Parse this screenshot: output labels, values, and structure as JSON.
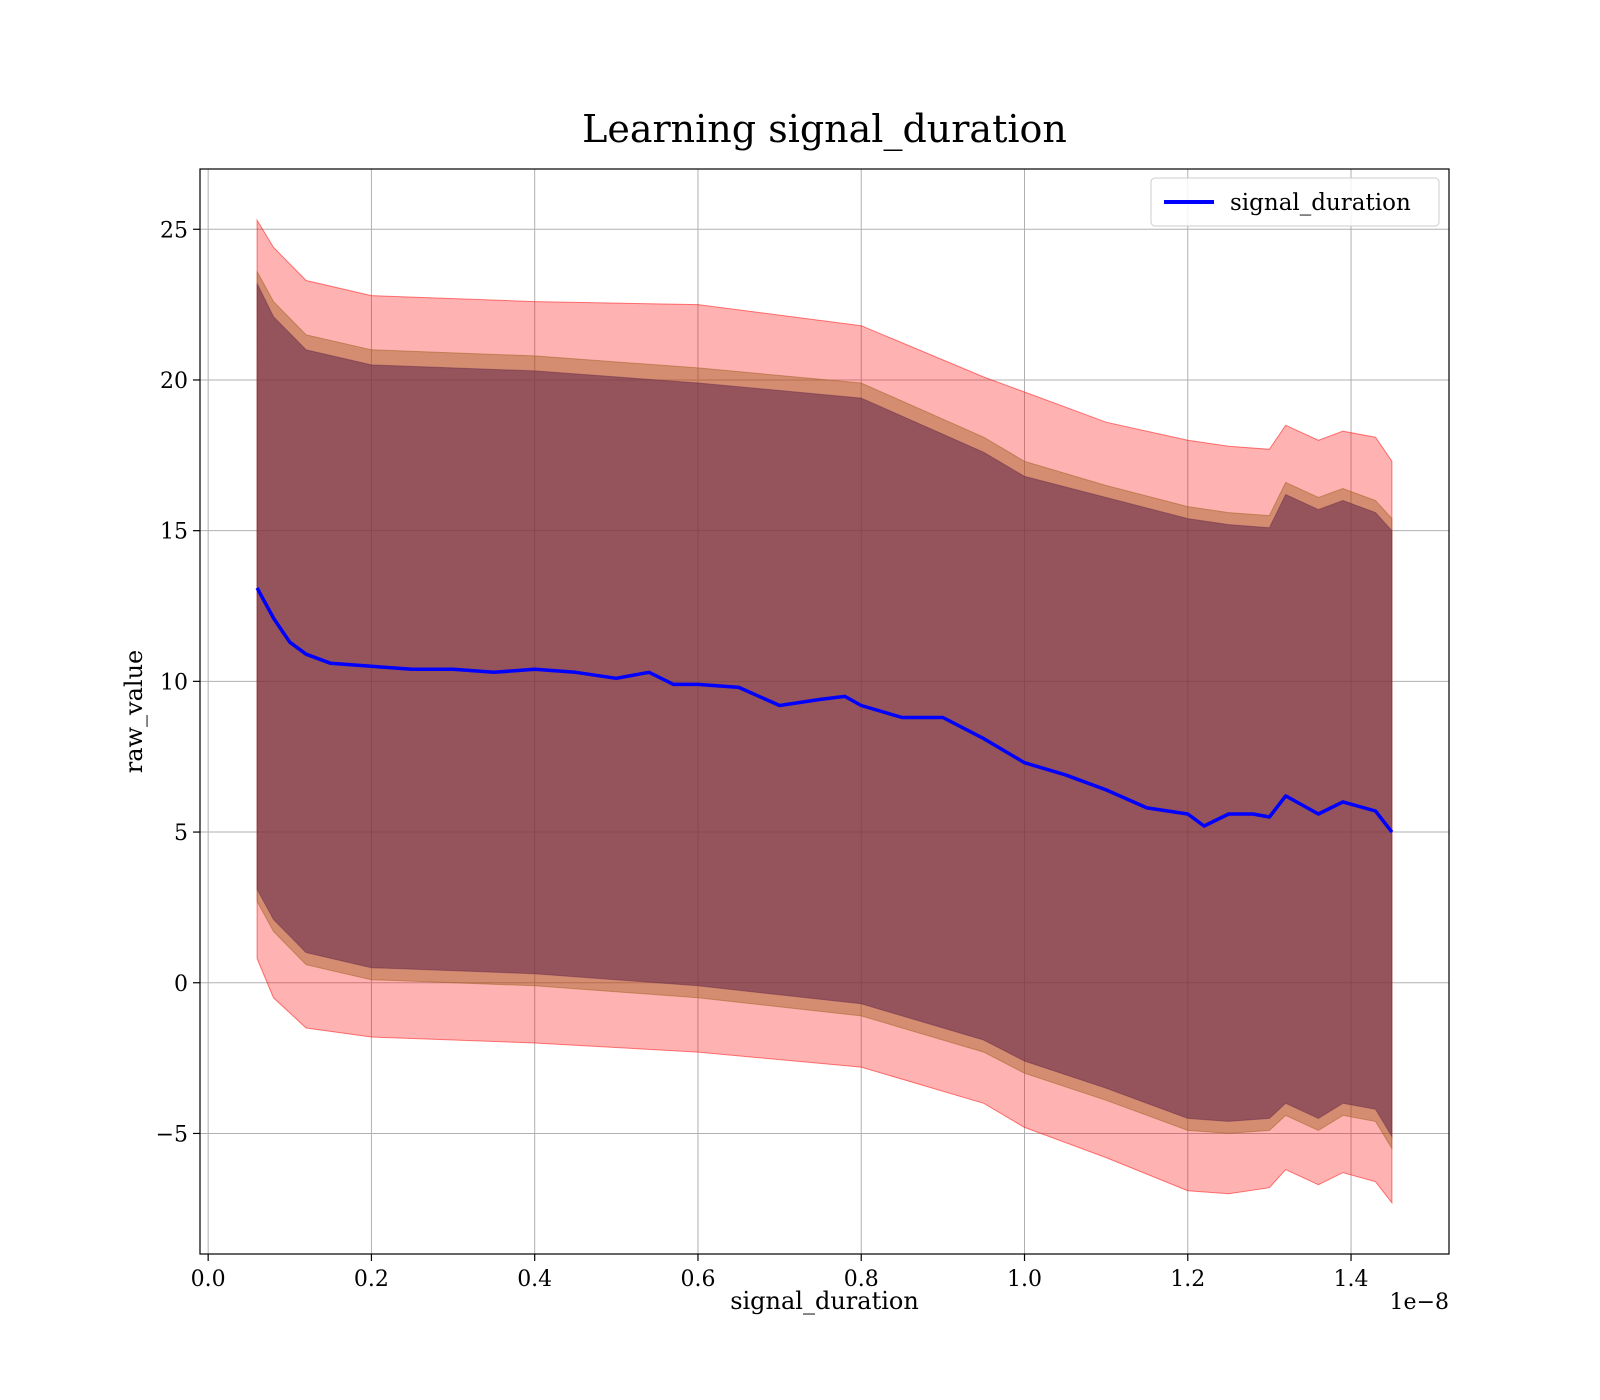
{
  "chart_data": {
    "type": "line",
    "title": "Learning signal_duration",
    "xlabel": "signal_duration",
    "ylabel": "raw_value",
    "x_offset_label": "1e−8",
    "xlim": [
      -0.01,
      1.52
    ],
    "ylim": [
      -9,
      27
    ],
    "x_ticks": [
      0.0,
      0.2,
      0.4,
      0.6,
      0.8,
      1.0,
      1.2,
      1.4
    ],
    "x_tick_labels": [
      "0.0",
      "0.2",
      "0.4",
      "0.6",
      "0.8",
      "1.0",
      "1.2",
      "1.4"
    ],
    "y_ticks": [
      -5,
      0,
      5,
      10,
      15,
      20,
      25
    ],
    "y_tick_labels": [
      "−5",
      "0",
      "5",
      "10",
      "15",
      "20",
      "25"
    ],
    "grid": true,
    "legend_position": "top-right",
    "series": [
      {
        "name": "signal_duration",
        "color": "#0000ff",
        "x": [
          0.06,
          0.07,
          0.08,
          0.09,
          0.1,
          0.12,
          0.15,
          0.2,
          0.25,
          0.3,
          0.35,
          0.4,
          0.45,
          0.5,
          0.54,
          0.57,
          0.6,
          0.65,
          0.7,
          0.75,
          0.78,
          0.8,
          0.85,
          0.9,
          0.95,
          1.0,
          1.05,
          1.1,
          1.15,
          1.2,
          1.22,
          1.25,
          1.28,
          1.3,
          1.32,
          1.36,
          1.39,
          1.43,
          1.45
        ],
        "values": [
          13.1,
          12.6,
          12.1,
          11.7,
          11.3,
          10.9,
          10.6,
          10.5,
          10.4,
          10.4,
          10.3,
          10.4,
          10.3,
          10.1,
          10.3,
          9.9,
          9.9,
          9.8,
          9.2,
          9.4,
          9.5,
          9.2,
          8.8,
          8.8,
          8.1,
          7.3,
          6.9,
          6.4,
          5.8,
          5.6,
          5.2,
          5.6,
          5.6,
          5.5,
          6.2,
          5.6,
          6.0,
          5.7,
          5.0
        ]
      }
    ],
    "bands": [
      {
        "description": "outer",
        "color": "#ff0000",
        "opacity": 0.3,
        "x": [
          0.06,
          0.08,
          0.12,
          0.2,
          0.4,
          0.6,
          0.8,
          0.95,
          1.0,
          1.1,
          1.2,
          1.25,
          1.3,
          1.32,
          1.36,
          1.39,
          1.43,
          1.45
        ],
        "upper": [
          25.3,
          24.4,
          23.3,
          22.8,
          22.6,
          22.5,
          21.8,
          20.1,
          19.6,
          18.6,
          18.0,
          17.8,
          17.7,
          18.5,
          18.0,
          18.3,
          18.1,
          17.3
        ],
        "lower": [
          0.8,
          -0.5,
          -1.5,
          -1.8,
          -2.0,
          -2.3,
          -2.8,
          -4.0,
          -4.8,
          -5.8,
          -6.9,
          -7.0,
          -6.8,
          -6.2,
          -6.7,
          -6.3,
          -6.6,
          -7.3
        ]
      },
      {
        "description": "middle",
        "color": "#a06020",
        "opacity": 0.45,
        "x": [
          0.06,
          0.08,
          0.12,
          0.2,
          0.4,
          0.6,
          0.8,
          0.95,
          1.0,
          1.1,
          1.2,
          1.25,
          1.3,
          1.32,
          1.36,
          1.39,
          1.43,
          1.45
        ],
        "upper": [
          23.6,
          22.6,
          21.5,
          21.0,
          20.8,
          20.4,
          19.9,
          18.1,
          17.3,
          16.5,
          15.8,
          15.6,
          15.5,
          16.6,
          16.1,
          16.4,
          16.0,
          15.4
        ],
        "lower": [
          2.7,
          1.7,
          0.6,
          0.1,
          -0.1,
          -0.5,
          -1.1,
          -2.3,
          -3.0,
          -3.9,
          -4.9,
          -5.0,
          -4.9,
          -4.4,
          -4.9,
          -4.4,
          -4.6,
          -5.5
        ]
      },
      {
        "description": "inner",
        "color": "#6b2d4d",
        "opacity": 0.6,
        "x": [
          0.06,
          0.08,
          0.12,
          0.2,
          0.4,
          0.6,
          0.8,
          0.95,
          1.0,
          1.1,
          1.2,
          1.25,
          1.3,
          1.32,
          1.36,
          1.39,
          1.43,
          1.45
        ],
        "upper": [
          23.2,
          22.1,
          21.0,
          20.5,
          20.3,
          19.9,
          19.4,
          17.6,
          16.8,
          16.1,
          15.4,
          15.2,
          15.1,
          16.2,
          15.7,
          16.0,
          15.6,
          15.0
        ],
        "lower": [
          3.1,
          2.1,
          1.0,
          0.5,
          0.3,
          -0.1,
          -0.7,
          -1.9,
          -2.6,
          -3.5,
          -4.5,
          -4.6,
          -4.5,
          -4.0,
          -4.5,
          -4.0,
          -4.2,
          -5.1
        ]
      }
    ]
  }
}
